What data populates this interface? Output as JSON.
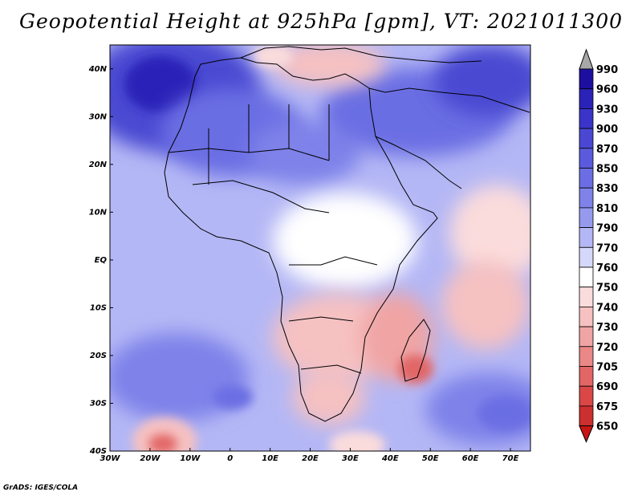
{
  "title": "Geopotential Height at 925hPa [gpm], VT: 2021011300",
  "footer": "GrADS: IGES/COLA",
  "map": {
    "lat_labels": [
      "40N",
      "30N",
      "20N",
      "10N",
      "EQ",
      "10S",
      "20S",
      "30S",
      "40S"
    ],
    "lon_labels": [
      "30W",
      "20W",
      "10W",
      "0",
      "10E",
      "20E",
      "30E",
      "40E",
      "50E",
      "60E",
      "70E"
    ],
    "extent": {
      "lon_min": -30,
      "lon_max": 75,
      "lat_min": -40,
      "lat_max": 45
    }
  },
  "colorbar": {
    "levels": [
      "990",
      "960",
      "930",
      "900",
      "870",
      "850",
      "830",
      "810",
      "790",
      "770",
      "760",
      "750",
      "740",
      "730",
      "720",
      "705",
      "690",
      "675",
      "650"
    ],
    "colors": [
      "#1c0fa0",
      "#2b22b8",
      "#3a35c8",
      "#4a48d2",
      "#5a5bdc",
      "#6b6ee3",
      "#7e82e9",
      "#969aef",
      "#b4b7f5",
      "#d6d8fb",
      "#ffffff",
      "#fbdcdc",
      "#f6c1c1",
      "#f0a4a4",
      "#ea8787",
      "#e26666",
      "#d94747",
      "#cc2f2f",
      "#b51818"
    ],
    "top_arrow_color": "#a8a8a8",
    "bottom_arrow_color": "#c81414"
  }
}
